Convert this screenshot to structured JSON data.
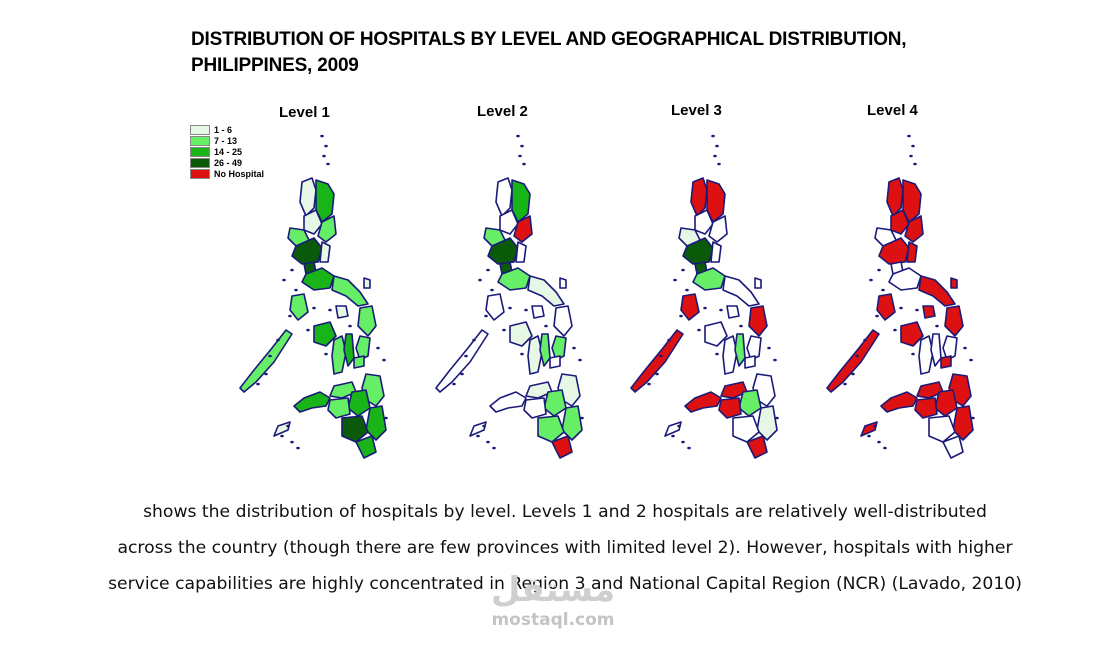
{
  "title": {
    "line1": "DISTRIBUTION OF HOSPITALS BY LEVEL AND GEOGRAPHICAL DISTRIBUTION,",
    "line2": "PHILIPPINES, 2009"
  },
  "legend": {
    "items": [
      {
        "label": "1 - 6",
        "color": "#e6f7e6"
      },
      {
        "label": "7 - 13",
        "color": "#66ee66"
      },
      {
        "label": "14 - 25",
        "color": "#18b418"
      },
      {
        "label": "26 - 49",
        "color": "#0a5a0a"
      },
      {
        "label": "No Hospital",
        "color": "#dd1111"
      }
    ]
  },
  "maps": [
    {
      "label": "Level 1",
      "dominant": "green"
    },
    {
      "label": "Level 2",
      "dominant": "mixed"
    },
    {
      "label": "Level 3",
      "dominant": "mixed-red"
    },
    {
      "label": "Level 4",
      "dominant": "red"
    }
  ],
  "caption": {
    "line1": "shows the distribution of hospitals by level. Levels 1 and 2 hospitals are relatively well-distributed",
    "line2": "across the country (though there are few provinces with limited level 2). However, hospitals with higher",
    "line3": "service capabilities are highly concentrated in Region 3 and National Capital Region (NCR) (Lavado, 2010)"
  },
  "watermark": {
    "logo": "مستقل",
    "site": "mostaql.com"
  }
}
